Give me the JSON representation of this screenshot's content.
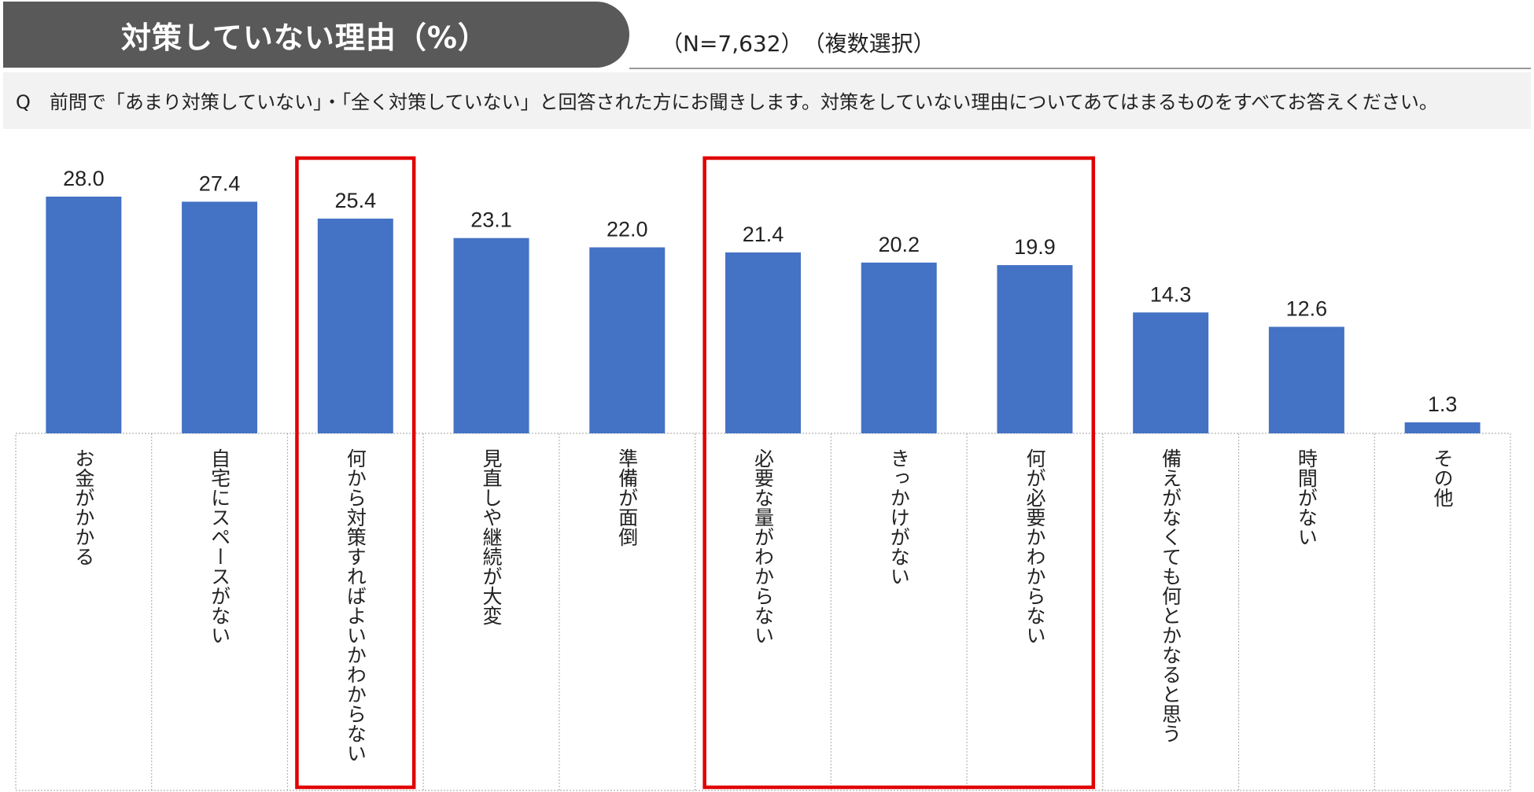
{
  "header": {
    "title": "対策していない理由（%）",
    "sample_size": "（N=7,632）",
    "note": "（複数選択）"
  },
  "question": "Q　前問で「あまり対策していない」・「全く対策していない」と回答された方にお聞きします。対策をしていない理由についてあてはまるものをすべてお答えください。",
  "colors": {
    "bar": "#4472c4",
    "highlight": "#e00000",
    "title_bg": "#595959"
  },
  "chart_data": {
    "type": "bar",
    "categories": [
      "お金がかかる",
      "自宅にスペースがない",
      "何から対策すればよいかわからない",
      "見直しや継続が大変",
      "準備が面倒",
      "必要な量がわからない",
      "きっかけがない",
      "何が必要かわからない",
      "備えがなくても何とかなると思う",
      "時間がない",
      "その他"
    ],
    "values": [
      28.0,
      27.4,
      25.4,
      23.1,
      22.0,
      21.4,
      20.2,
      19.9,
      14.3,
      12.6,
      1.3
    ],
    "value_labels": [
      "28.0",
      "27.4",
      "25.4",
      "23.1",
      "22.0",
      "21.4",
      "20.2",
      "19.9",
      "14.3",
      "12.6",
      "1.3"
    ],
    "category_label_orientation": "vertical",
    "highlight_groups": [
      [
        2,
        2
      ],
      [
        5,
        7
      ]
    ],
    "grid": false
  }
}
